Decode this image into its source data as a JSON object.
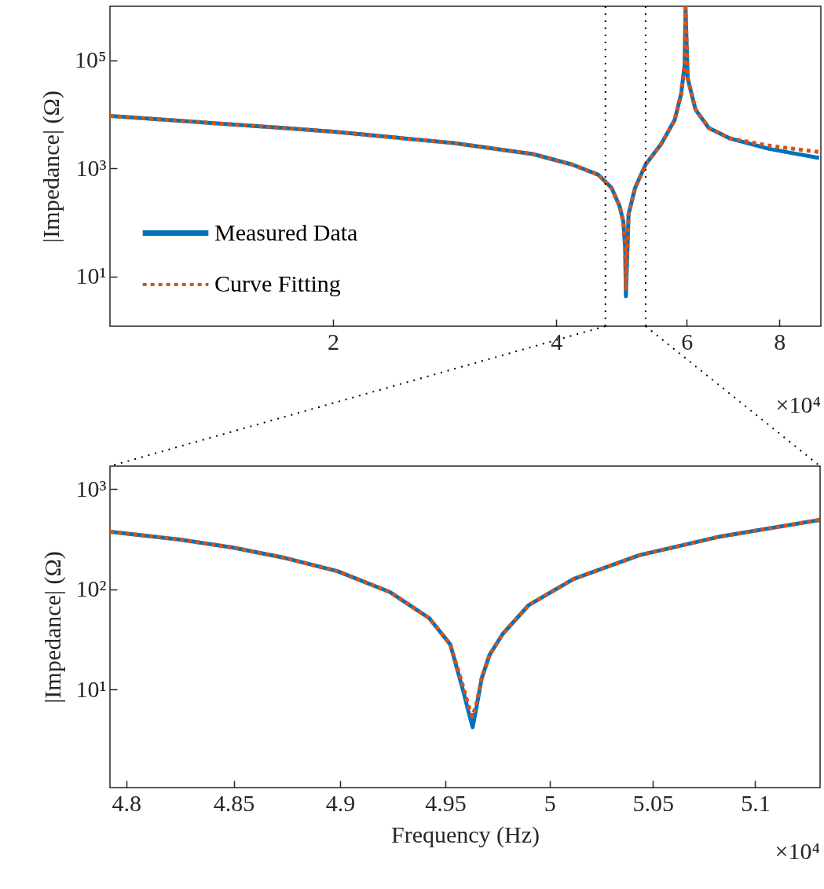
{
  "chart_data": [
    {
      "type": "line",
      "ylabel": "|Impedance| (Ω)",
      "log": "xy",
      "legend": "bottom left",
      "xlim": [
        1,
        9.1
      ],
      "ylim": [
        1.2,
        1000000
      ],
      "xticks": [
        2,
        4,
        6,
        8
      ],
      "yticks": [
        {
          "value": 10,
          "label": "10¹"
        },
        {
          "value": 1000,
          "label": "10³"
        },
        {
          "value": 100000,
          "label": "10⁵"
        }
      ],
      "ref_lines": [
        {
          "axis": "x",
          "value": 4.66,
          "color": "#000000",
          "line_style": "dotted"
        },
        {
          "axis": "x",
          "value": 5.28,
          "color": "#000000",
          "line_style": "dotted"
        }
      ],
      "annotations": [
        "×10⁴"
      ],
      "series": [
        {
          "name": "Measured Data",
          "color": "#0072bd",
          "line_style": "solid",
          "x": [
            1,
            1.711,
            2,
            2.91,
            3.72,
            4.2,
            4.56,
            4.75,
            4.87,
            4.927,
            4.955,
            4.966,
            5.008,
            5.11,
            5.28,
            5.546,
            5.778,
            5.896,
            5.96,
            5.977,
            6.017,
            6.166,
            6.424,
            6.857,
            7.75,
            9.05
          ],
          "values": [
            9350,
            5610,
            4790,
            2940,
            1840,
            1180,
            760,
            435,
            200,
            103,
            34,
            4.3,
            143,
            435,
            1180,
            2880,
            7840,
            23800,
            81000,
            940000,
            46400,
            12200,
            5610,
            3590,
            2300,
            1560
          ]
        },
        {
          "name": "Curve Fitting",
          "color": "#d95319",
          "line_style": "dotted",
          "x": [
            1,
            1.711,
            2,
            2.91,
            3.72,
            4.2,
            4.56,
            4.75,
            4.87,
            4.927,
            4.955,
            4.966,
            5.008,
            5.11,
            5.28,
            5.546,
            5.778,
            5.896,
            5.96,
            5.977,
            6.017,
            6.166,
            6.424,
            6.857,
            7.75,
            9.05
          ],
          "values": [
            9350,
            5610,
            4790,
            2940,
            1840,
            1180,
            760,
            435,
            200,
            103,
            34,
            5.5,
            143,
            435,
            1180,
            2880,
            7840,
            23800,
            81000,
            940000,
            46400,
            12200,
            5610,
            3590,
            2630,
            2010
          ]
        }
      ]
    },
    {
      "type": "line",
      "xlabel": "Frequency (Hz)",
      "ylabel": "|Impedance| (Ω)",
      "log": "xy",
      "xlim": [
        4.7925,
        5.132
      ],
      "ylim": [
        1.05,
        1700
      ],
      "xticks": [
        4.8,
        4.85,
        4.9,
        4.95,
        5,
        5.05,
        5.1
      ],
      "yticks": [
        {
          "value": 10,
          "label": "10¹"
        },
        {
          "value": 100,
          "label": "10²"
        },
        {
          "value": 1000,
          "label": "10³"
        }
      ],
      "annotations": [
        "×10⁴"
      ],
      "series": [
        {
          "color": "#0072bd",
          "line_style": "solid",
          "x": [
            4.7925,
            4.825,
            4.8494,
            4.874,
            4.8987,
            4.9236,
            4.9423,
            4.9523,
            4.9586,
            4.9611,
            4.963,
            4.9648,
            4.9673,
            4.9711,
            4.9774,
            4.9899,
            5.0115,
            5.0433,
            5.0819,
            5.132
          ],
          "values": [
            377,
            314,
            262,
            206,
            152,
            94,
            51.5,
            28.2,
            9.5,
            5.9,
            4.2,
            6.6,
            12.9,
            22.2,
            35.9,
            69.7,
            127,
            219,
            334,
            494
          ]
        },
        {
          "color": "#d95319",
          "line_style": "dotted",
          "x": [
            4.7925,
            4.825,
            4.8494,
            4.874,
            4.8987,
            4.9236,
            4.9423,
            4.9523,
            4.9586,
            4.9611,
            4.963,
            4.9648,
            4.9673,
            4.9711,
            4.9774,
            4.9899,
            5.0115,
            5.0433,
            5.0819,
            5.132
          ],
          "values": [
            377,
            314,
            262,
            206,
            152,
            94,
            51.5,
            28.2,
            10.5,
            6.8,
            5.4,
            7.2,
            12.9,
            22.2,
            35.9,
            69.7,
            127,
            219,
            334,
            494
          ]
        }
      ]
    }
  ]
}
